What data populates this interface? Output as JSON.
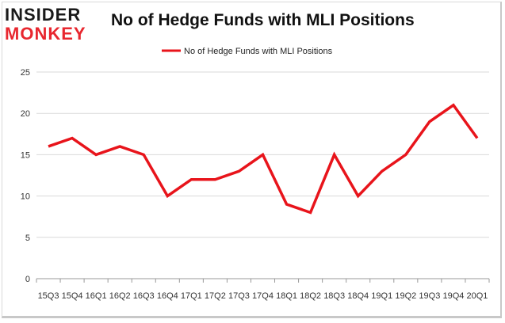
{
  "logo": {
    "line1": "INSIDER",
    "line2": "MONKEY"
  },
  "chart_data": {
    "type": "line",
    "title": "No of Hedge Funds with MLI Positions",
    "series": [
      {
        "name": "No of Hedge Funds with MLI Positions",
        "color": "#e8141b",
        "values": [
          16,
          17,
          15,
          16,
          15,
          10,
          12,
          12,
          13,
          15,
          9,
          8,
          15,
          10,
          13,
          15,
          19,
          21,
          17
        ]
      }
    ],
    "x_tick_labels": [
      "15Q3",
      "15Q4",
      "16Q1",
      "16Q2",
      "16Q3",
      "16Q4",
      "17Q1",
      "17Q2",
      "17Q3",
      "17Q4",
      "18Q1",
      "18Q2",
      "18Q3",
      "18Q4",
      "19Q1",
      "19Q2",
      "19Q3",
      "19Q4",
      "20Q1"
    ],
    "xlabel": "",
    "ylabel": "",
    "ylim": [
      0,
      25
    ],
    "y_ticks": [
      0,
      5,
      10,
      15,
      20,
      25
    ],
    "grid": true,
    "legend_position": "top-center"
  }
}
